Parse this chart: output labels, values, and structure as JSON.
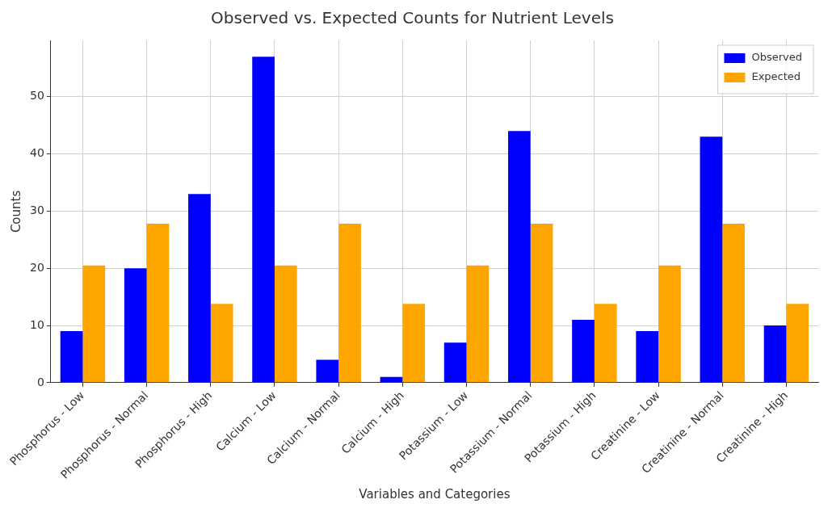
{
  "chart_data": {
    "type": "bar",
    "title": "Observed vs. Expected Counts for Nutrient Levels",
    "xlabel": "Variables and Categories",
    "ylabel": "Counts",
    "categories": [
      "Phosphorus - Low",
      "Phosphorus - Normal",
      "Phosphorus - High",
      "Calcium - Low",
      "Calcium - Normal",
      "Calcium - High",
      "Potassium - Low",
      "Potassium - Normal",
      "Potassium - High",
      "Creatinine - Low",
      "Creatinine - Normal",
      "Creatinine - High"
    ],
    "series": [
      {
        "name": "Observed",
        "color": "#0000ff",
        "values": [
          9,
          20,
          33,
          57,
          4,
          1,
          7,
          44,
          11,
          9,
          43,
          10
        ]
      },
      {
        "name": "Expected",
        "color": "#ffa500",
        "values": [
          20.5,
          27.8,
          13.8,
          20.5,
          27.8,
          13.8,
          20.5,
          27.8,
          13.8,
          20.5,
          27.8,
          13.8
        ]
      }
    ],
    "ylim": [
      0,
      59.85
    ],
    "yticks": [
      0,
      10,
      20,
      30,
      40,
      50
    ],
    "grid": true,
    "legend": "top right"
  }
}
